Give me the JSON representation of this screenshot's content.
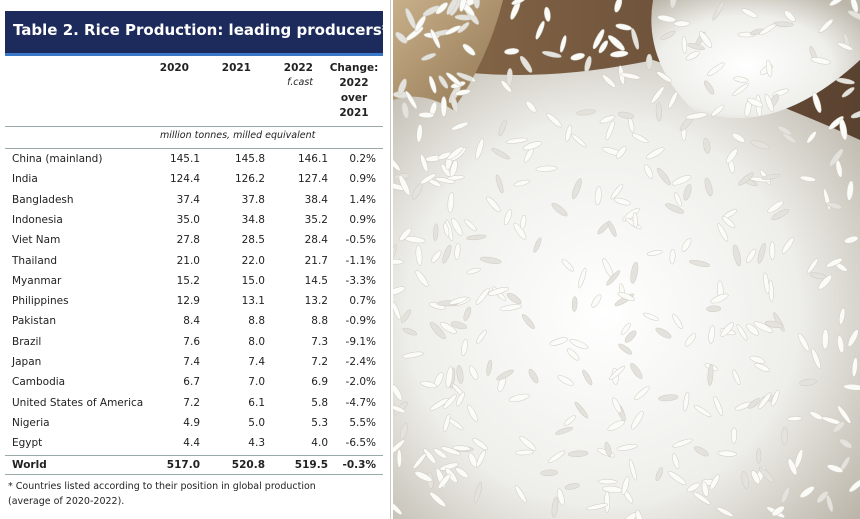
{
  "table": {
    "title": "Table 2. Rice Production: leading producers*",
    "columns": [
      {
        "lines": [
          "2020"
        ]
      },
      {
        "lines": [
          "2021"
        ]
      },
      {
        "lines": [
          "2022"
        ],
        "note": "f.cast"
      },
      {
        "lines": [
          "Change:",
          "2022",
          "over",
          "2021"
        ]
      }
    ],
    "unit": "million tonnes, milled equivalent",
    "rows": [
      [
        "China (mainland)",
        "145.1",
        "145.8",
        "146.1",
        "0.2%"
      ],
      [
        "India",
        "124.4",
        "126.2",
        "127.4",
        "0.9%"
      ],
      [
        "Bangladesh",
        "37.4",
        "37.8",
        "38.4",
        "1.4%"
      ],
      [
        "Indonesia",
        "35.0",
        "34.8",
        "35.2",
        "0.9%"
      ],
      [
        "Viet Nam",
        "27.8",
        "28.5",
        "28.4",
        "-0.5%"
      ],
      [
        "Thailand",
        "21.0",
        "22.0",
        "21.7",
        "-1.1%"
      ],
      [
        "Myanmar",
        "15.2",
        "15.0",
        "14.5",
        "-3.3%"
      ],
      [
        "Philippines",
        "12.9",
        "13.1",
        "13.2",
        "0.7%"
      ],
      [
        "Pakistan",
        "8.4",
        "8.8",
        "8.8",
        "-0.9%"
      ],
      [
        "Brazil",
        "7.6",
        "8.0",
        "7.3",
        "-9.1%"
      ],
      [
        "Japan",
        "7.4",
        "7.4",
        "7.2",
        "-2.4%"
      ],
      [
        "Cambodia",
        "6.7",
        "7.0",
        "6.9",
        "-2.0%"
      ],
      [
        "United States of America",
        "7.2",
        "6.1",
        "5.8",
        "-4.7%"
      ],
      [
        "Nigeria",
        "4.9",
        "5.0",
        "5.3",
        "5.5%"
      ],
      [
        "Egypt",
        "4.4",
        "4.3",
        "4.0",
        "-6.5%"
      ]
    ],
    "total": [
      "World",
      "517.0",
      "520.8",
      "519.5",
      "-0.3%"
    ],
    "footnote": [
      "* Countries listed according to their position in global production",
      "(average of 2020-2022)."
    ]
  }
}
